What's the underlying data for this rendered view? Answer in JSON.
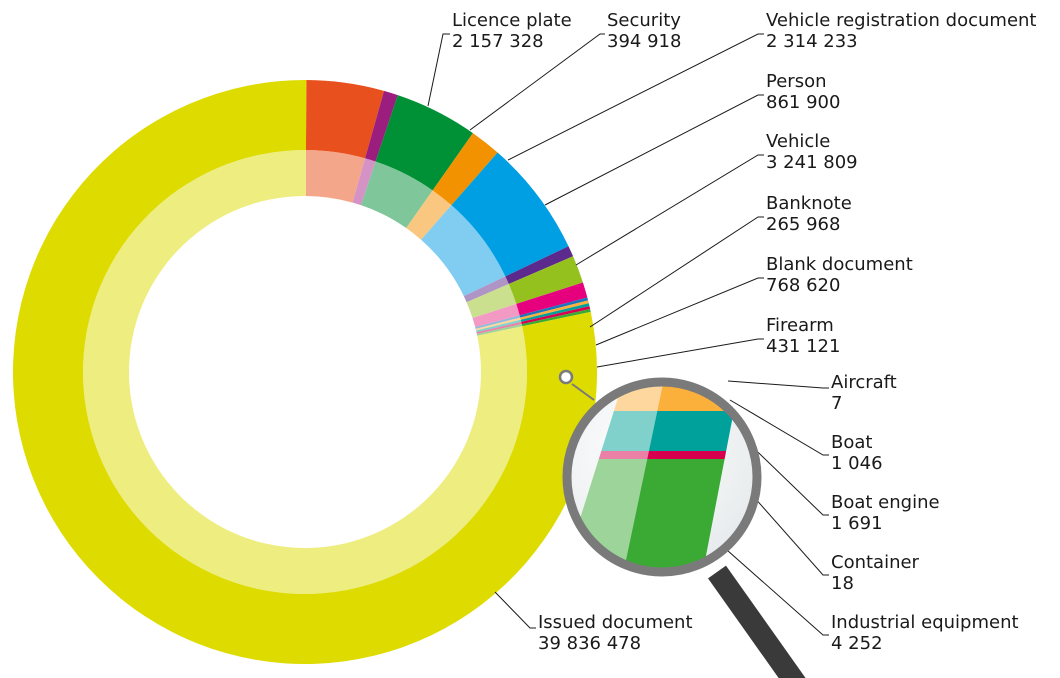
{
  "chart_data": {
    "type": "donut",
    "title": "",
    "categories": [
      {
        "label": "Licence plate",
        "value": 2157328,
        "value_label": "2 157 328",
        "color": "#E8501E",
        "light": "#F4A68A"
      },
      {
        "label": "Security",
        "value": 394918,
        "value_label": "394 918",
        "color": "#9B1D7E",
        "light": "#D592C4"
      },
      {
        "label": "Vehicle registration document",
        "value": 2314233,
        "value_label": "2 314 233",
        "color": "#009036",
        "light": "#80C69B"
      },
      {
        "label": "Person",
        "value": 861900,
        "value_label": "861 900",
        "color": "#F39200",
        "light": "#F9C77F"
      },
      {
        "label": "Vehicle",
        "value": 3241809,
        "value_label": "3 241 809",
        "color": "#009FE3",
        "light": "#80CDF1"
      },
      {
        "label": "Banknote",
        "value": 265968,
        "value_label": "265 968",
        "color": "#5C2A8C",
        "light": "#AE95C6"
      },
      {
        "label": "Blank document",
        "value": 768620,
        "value_label": "768 620",
        "color": "#95C11F",
        "light": "#CAE08F"
      },
      {
        "label": "Firearm",
        "value": 431121,
        "value_label": "431 121",
        "color": "#E6007E",
        "light": "#F29AC4"
      },
      {
        "label": "Aircraft",
        "value": 7,
        "value_label": "7",
        "color": "#1B75BC",
        "light": "#8DB9DD"
      },
      {
        "label": "Boat",
        "value": 1046,
        "value_label": "1 046",
        "color": "#FBB03B",
        "light": "#FDD79D"
      },
      {
        "label": "Boat engine",
        "value": 1691,
        "value_label": "1 691",
        "color": "#00A19A",
        "light": "#80D0CC"
      },
      {
        "label": "Container",
        "value": 18,
        "value_label": "18",
        "color": "#D7004F",
        "light": "#EB80A7"
      },
      {
        "label": "Industrial equipment",
        "value": 4252,
        "value_label": "4 252",
        "color": "#3AAA35",
        "light": "#9DD49A"
      },
      {
        "label": "Issued document",
        "value": 39836478,
        "value_label": "39 836 478",
        "color": "#DDDB00",
        "light": "#EEED80"
      }
    ],
    "magnified": [
      "Aircraft",
      "Boat",
      "Boat engine",
      "Container",
      "Industrial equipment"
    ],
    "legend": "callout labels"
  }
}
